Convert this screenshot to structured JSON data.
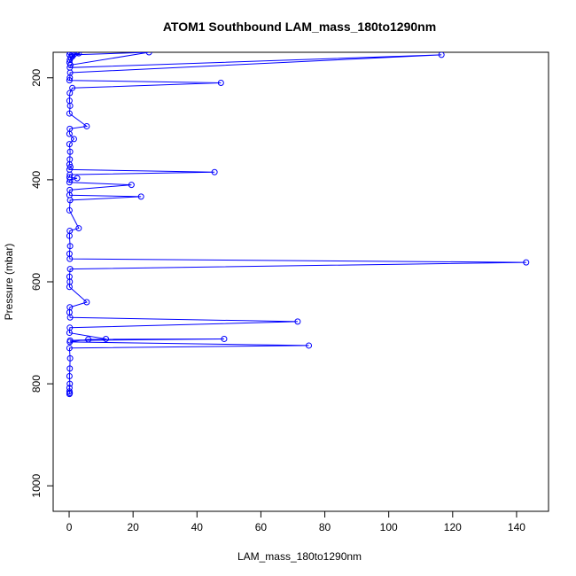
{
  "chart_data": {
    "type": "line",
    "title": "ATOM1 Southbound LAM_mass_180to1290nm",
    "xlabel": "LAM_mass_180to1290nm",
    "ylabel": "Pressure (mbar)",
    "xlim": [
      -5,
      150
    ],
    "ylim": [
      1050,
      150
    ],
    "y_reversed": true,
    "x_ticks": [
      0,
      20,
      40,
      60,
      80,
      100,
      120,
      140
    ],
    "y_ticks": [
      200,
      400,
      600,
      800,
      1000
    ],
    "series_color": "#0000ff",
    "markers": "open-circle",
    "grid": false,
    "series": [
      {
        "x": [
          0.3,
          0.1,
          0.5,
          1,
          2.5,
          0.2,
          0.1,
          3,
          1,
          25,
          0.4,
          0.2,
          116.5,
          0.3,
          0.2,
          0.1,
          47.5,
          1,
          0.2,
          0.1,
          0.3,
          0.1,
          5.5,
          0.2,
          0.1,
          1.5,
          0.1,
          0.3,
          0.2,
          0.1,
          0.4,
          0.1,
          45.5,
          0.2,
          0.1,
          2.5,
          0.3,
          0.1,
          19.5,
          0.2,
          0.1,
          22.5,
          0.3,
          0.1,
          3,
          0.2,
          0.1,
          0.3,
          0.1,
          0.2,
          143,
          0.3,
          0.1,
          0.2,
          0.1,
          5.5,
          0.2,
          0.1,
          0.3,
          71.5,
          0.2,
          0.1,
          11.5,
          0.3,
          48.5,
          6,
          0.2,
          75,
          0.1,
          0.3,
          0.2,
          0.1,
          0.2,
          0.1,
          0.1,
          0.2,
          0.1
        ],
        "y": [
          150,
          155,
          160,
          158,
          150,
          165,
          170,
          152,
          155,
          150,
          175,
          180,
          155,
          190,
          200,
          205,
          210,
          220,
          230,
          245,
          255,
          270,
          295,
          300,
          310,
          320,
          330,
          345,
          360,
          370,
          375,
          380,
          385,
          390,
          395,
          397,
          400,
          405,
          410,
          420,
          430,
          433,
          440,
          460,
          495,
          500,
          510,
          530,
          545,
          555,
          562,
          575,
          590,
          600,
          610,
          640,
          650,
          660,
          670,
          678,
          690,
          700,
          712,
          715,
          712,
          713,
          718,
          725,
          730,
          750,
          770,
          785,
          800,
          808,
          815,
          818,
          820
        ]
      }
    ]
  }
}
